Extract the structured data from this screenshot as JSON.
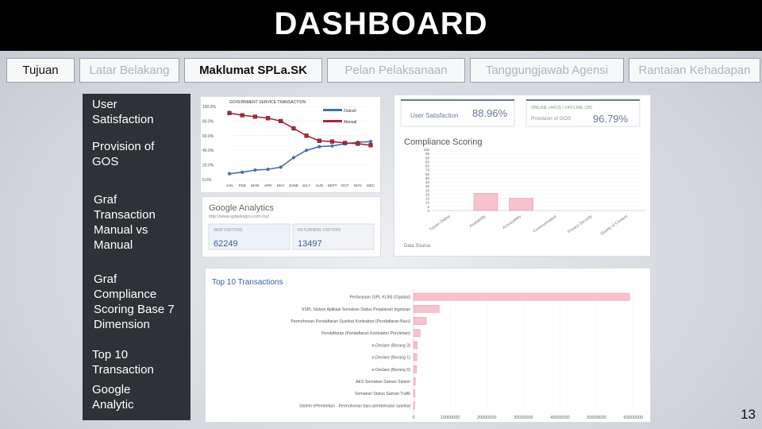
{
  "header": {
    "title": "DASHBOARD"
  },
  "tabs": [
    {
      "label": "Tujuan"
    },
    {
      "label": "Latar Belakang"
    },
    {
      "label": "Maklumat SPLa.SK"
    },
    {
      "label": "Pelan Pelaksanaan"
    },
    {
      "label": "Tanggungjawab Agensi"
    },
    {
      "label": "Rantaian Kehadapan"
    }
  ],
  "sidebar": {
    "items": [
      {
        "label": "User Satisfaction"
      },
      {
        "label": "Provision of GOS"
      },
      {
        "label": "Graf Transaction Manual vs Manual"
      },
      {
        "label": "Graf Compliance Scoring Base 7 Dimension"
      },
      {
        "label": "Top 10 Transaction"
      },
      {
        "label": "Google Analytic"
      }
    ]
  },
  "line_chart": {
    "title": "GOVERNMENT SERVICE TRANSACTION",
    "legend": [
      "Outcall",
      "Manual"
    ],
    "y_ticks": [
      "100.0%",
      "80.0%",
      "60.0%",
      "40.0%",
      "20.0%",
      "0.0%"
    ],
    "x_ticks": [
      "JAN",
      "FEB",
      "MAR",
      "APR",
      "MAY",
      "JUNE",
      "JULY",
      "AUG",
      "SEPT",
      "OCT",
      "NOV",
      "DEC"
    ],
    "colors": {
      "online": "#4a6fa5",
      "manual": "#a8293a"
    }
  },
  "kpi": {
    "left_caption": "User Satisfaction",
    "left_value": "88.96%",
    "right_caption_1": "ONLINE (4413) / OFFLINE (28)",
    "right_caption_2": "Provision of GOS",
    "right_value": "96.79%"
  },
  "compliance": {
    "title": "Compliance Scoring",
    "y_ticks": [
      "100",
      "95",
      "90",
      "85",
      "80",
      "70",
      "60",
      "50",
      "40",
      "30",
      "25",
      "20",
      "15",
      "10",
      "5",
      "0"
    ],
    "categories": [
      "Tujuan Online",
      "Availability",
      "Accessibility",
      "Communication",
      "Privacy Security",
      "Quality of Content"
    ],
    "footer": "Data Source"
  },
  "analytics": {
    "title": "Google Analytics",
    "subtitle": "http://www.splasksgov.com.my/",
    "new_label": "NEW VISITORS",
    "new_value": "62249",
    "returning_label": "RETURNING VISITORS",
    "returning_value": "13497"
  },
  "top10": {
    "title": "Top 10 Transactions",
    "labels": [
      "Pertanyaan (SPL KLIN) (Ogalasi)",
      "SSPL Sistem Aplikasi Semakan Status Perjalanan Ingnoran",
      "Permohonan Pendaftaran Syarikat Kontraktor (Pendaftaran Baru)",
      "Pendaftaran (Pendaftaran Kontraktor Perolehan)",
      "e-Declare (Borang 3)",
      "e-Declare (Borang 1)",
      "e-Declare (Borang 6)",
      "AES Semakan Saman Sistem",
      "Semakan Status Saman Trafik",
      "Sistem ePembelian - Permohonan baru pembekalan syarikat"
    ],
    "axis_ticks": [
      "0",
      "10000000",
      "20000000",
      "30000000",
      "40000000",
      "50000000",
      "60000000"
    ]
  },
  "chart_data": [
    {
      "type": "line",
      "title": "GOVERNMENT SERVICE TRANSACTION",
      "x": [
        "JAN",
        "FEB",
        "MAR",
        "APR",
        "MAY",
        "JUNE",
        "JULY",
        "AUG",
        "SEPT",
        "OCT",
        "NOV",
        "DEC"
      ],
      "ylim": [
        0,
        100
      ],
      "series": [
        {
          "name": "Outcall",
          "values": [
            8,
            10,
            13,
            14,
            17,
            30,
            40,
            45,
            46,
            49,
            51,
            52
          ]
        },
        {
          "name": "Manual",
          "values": [
            91,
            88,
            86,
            84,
            80,
            70,
            60,
            53,
            52,
            50,
            49,
            47
          ]
        }
      ]
    },
    {
      "type": "bar",
      "title": "Compliance Scoring",
      "categories": [
        "Tujuan Online",
        "Availability",
        "Accessibility",
        "Communication",
        "Privacy Security",
        "Quality of Content"
      ],
      "values": [
        0,
        28,
        20,
        0,
        0,
        0
      ],
      "ylim": [
        0,
        100
      ]
    },
    {
      "type": "bar",
      "title": "Top 10 Transactions",
      "categories": [
        "Pertanyaan (SPL KLIN) (Ogalasi)",
        "SSPL Sistem Aplikasi Semakan Status Perjalanan Ingnoran",
        "Permohonan Pendaftaran Syarikat Kontraktor (Pendaftaran Baru)",
        "Pendaftaran (Pendaftaran Kontraktor Perolehan)",
        "e-Declare (Borang 3)",
        "e-Declare (Borang 1)",
        "e-Declare (Borang 6)",
        "AES Semakan Saman Sistem",
        "Semakan Status Saman Trafik",
        "Sistem ePembelian - Permohonan baru pembekalan syarikat"
      ],
      "values": [
        59000000,
        7000000,
        3500000,
        1800000,
        1000000,
        900000,
        800000,
        500000,
        400000,
        300000
      ],
      "xlim": [
        0,
        62000000
      ]
    }
  ],
  "page": {
    "number": "13"
  }
}
